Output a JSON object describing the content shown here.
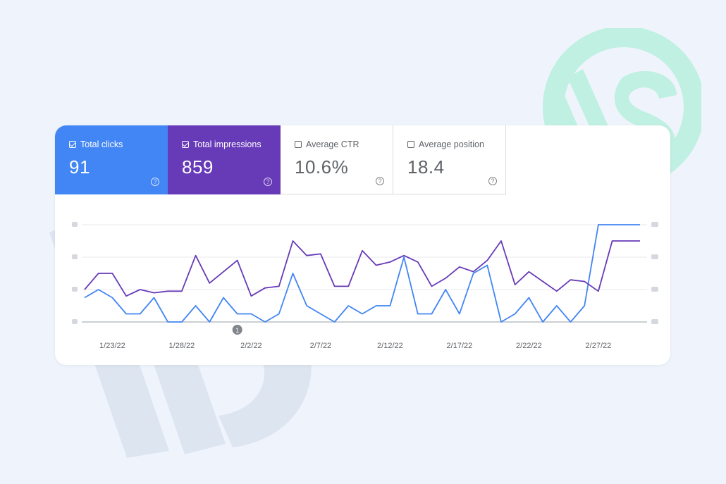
{
  "metrics": [
    {
      "label": "Total clicks",
      "value": "91",
      "checked": true,
      "color": "#4285f4"
    },
    {
      "label": "Total impressions",
      "value": "859",
      "checked": true,
      "color": "#673ab7"
    },
    {
      "label": "Average CTR",
      "value": "10.6%",
      "checked": false
    },
    {
      "label": "Average position",
      "value": "18.4",
      "checked": false
    }
  ],
  "help_icon": "question-circle-icon",
  "chart_data": {
    "type": "line",
    "x": [
      "1/21/22",
      "1/22/22",
      "1/23/22",
      "1/24/22",
      "1/25/22",
      "1/26/22",
      "1/27/22",
      "1/28/22",
      "1/29/22",
      "1/30/22",
      "1/31/22",
      "2/1/22",
      "2/2/22",
      "2/3/22",
      "2/4/22",
      "2/5/22",
      "2/6/22",
      "2/7/22",
      "2/8/22",
      "2/9/22",
      "2/10/22",
      "2/11/22",
      "2/12/22",
      "2/13/22",
      "2/14/22",
      "2/15/22",
      "2/16/22",
      "2/17/22",
      "2/18/22",
      "2/19/22",
      "2/20/22",
      "2/21/22",
      "2/22/22",
      "2/23/22",
      "2/24/22",
      "2/25/22",
      "2/26/22",
      "2/27/22",
      "2/28/22",
      "3/1/22",
      "3/2/22"
    ],
    "x_tick_labels": [
      "1/23/22",
      "1/28/22",
      "2/2/22",
      "2/7/22",
      "2/12/22",
      "2/17/22",
      "2/22/22",
      "2/27/22"
    ],
    "series": [
      {
        "name": "Total clicks",
        "color": "#4285f4",
        "values": [
          1.5,
          2,
          1.5,
          0.5,
          0.5,
          1.5,
          0,
          0,
          1,
          0,
          1.5,
          0.5,
          0.5,
          0,
          0.5,
          3,
          1,
          0.5,
          0,
          1,
          0.5,
          1,
          1,
          4,
          0.5,
          0.5,
          2,
          0.5,
          3,
          3.5,
          0,
          0.5,
          1.5,
          0,
          1,
          0,
          1,
          6,
          6,
          6,
          6
        ]
      },
      {
        "name": "Total impressions",
        "color": "#673ab7",
        "values": [
          20,
          30,
          30,
          16,
          20,
          18,
          19,
          19,
          41,
          24,
          31,
          38,
          16,
          21,
          22,
          50,
          41,
          42,
          22,
          22,
          44,
          35,
          37,
          41,
          37,
          22,
          27,
          34,
          31,
          38,
          50,
          23,
          31,
          25,
          19,
          26,
          25,
          19,
          50,
          50,
          50
        ]
      }
    ],
    "markers": [
      {
        "x": "2/1/22",
        "label": "1"
      }
    ]
  }
}
